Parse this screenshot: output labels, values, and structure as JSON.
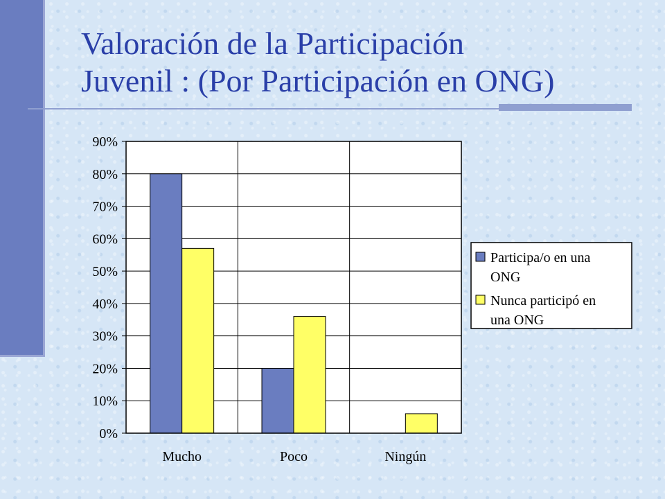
{
  "slide": {
    "title_line1": "Valoración de la Participación",
    "title_line2": "Juvenil : (Por Participación en ONG)"
  },
  "colors": {
    "title": "#2a3fa8",
    "accent_bar": "#6a7dc0",
    "series_1": "#6a7dc0",
    "series_2": "#ffff66",
    "plot_background": "#ffffff"
  },
  "chart_data": {
    "type": "bar",
    "title": "",
    "xlabel": "",
    "ylabel": "",
    "categories": [
      "Mucho",
      "Poco",
      "Ningún"
    ],
    "series": [
      {
        "name": "Participa/o en una ONG",
        "values": [
          80,
          20,
          0
        ]
      },
      {
        "name": "Nunca participó en una ONG",
        "values": [
          57,
          36,
          6
        ]
      }
    ],
    "ylim": [
      0,
      90
    ],
    "yticks": [
      0,
      10,
      20,
      30,
      40,
      50,
      60,
      70,
      80,
      90
    ],
    "ytick_labels": [
      "0%",
      "10%",
      "20%",
      "30%",
      "40%",
      "50%",
      "60%",
      "70%",
      "80%",
      "90%"
    ],
    "grid": true,
    "legend_position": "right",
    "legend_lines": [
      [
        "Participa/o en una",
        "ONG"
      ],
      [
        "Nunca participó en",
        "una ONG"
      ]
    ]
  }
}
